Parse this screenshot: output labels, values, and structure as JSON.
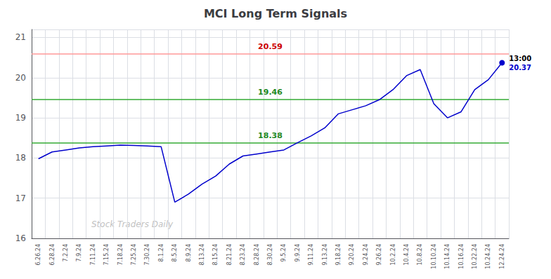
{
  "chart_data": {
    "type": "line",
    "title": "MCI Long Term Signals",
    "categories": [
      "6.26.24",
      "6.28.24",
      "7.2.24",
      "7.9.24",
      "7.11.24",
      "7.15.24",
      "7.18.24",
      "7.25.24",
      "7.30.24",
      "8.1.24",
      "8.5.24",
      "8.9.24",
      "8.13.24",
      "8.15.24",
      "8.21.24",
      "8.23.24",
      "8.28.24",
      "8.30.24",
      "9.5.24",
      "9.9.24",
      "9.11.24",
      "9.13.24",
      "9.18.24",
      "9.20.24",
      "9.24.24",
      "9.26.24",
      "10.2.24",
      "10.4.24",
      "10.8.24",
      "10.10.24",
      "10.14.24",
      "10.16.24",
      "10.22.24",
      "10.24.24",
      "12.24.24"
    ],
    "values": [
      17.98,
      18.15,
      18.2,
      18.25,
      18.28,
      18.3,
      18.32,
      18.31,
      18.3,
      18.28,
      16.9,
      17.1,
      17.35,
      17.55,
      17.85,
      18.05,
      18.1,
      18.15,
      18.2,
      18.38,
      18.55,
      18.75,
      19.1,
      19.2,
      19.3,
      19.45,
      19.7,
      20.05,
      20.2,
      19.35,
      19.0,
      19.15,
      19.7,
      19.95,
      20.37
    ],
    "color": "#0000cc",
    "ylim": [
      16,
      21.2
    ],
    "yticks": [
      16,
      17,
      18,
      19,
      20,
      21
    ],
    "grid": true,
    "hlines": [
      {
        "value": 20.59,
        "label": "20.59",
        "color": "#ff9999",
        "label_color": "#cc0000"
      },
      {
        "value": 19.46,
        "label": "19.46",
        "color": "#33aa33",
        "label_color": "#228822"
      },
      {
        "value": 18.38,
        "label": "18.38",
        "color": "#33aa33",
        "label_color": "#228822"
      }
    ],
    "annotations": [
      "13:00",
      "20.37"
    ],
    "watermark": "Stock Traders Daily"
  }
}
